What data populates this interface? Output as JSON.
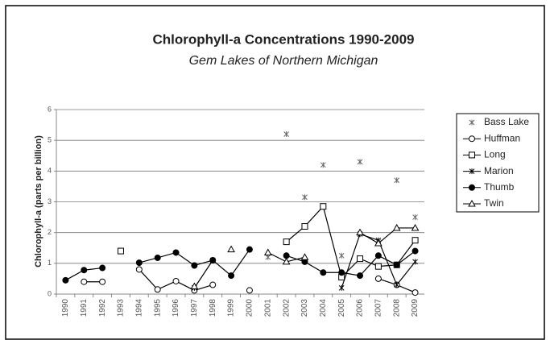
{
  "chart_data": {
    "type": "line",
    "title": "Chlorophyll-a Concentrations 1990-2009",
    "subtitle": "Gem Lakes of Northern Michigan",
    "y_label": "Chlorophyll-a (parts per billion)",
    "categories": [
      "1990",
      "1991",
      "1992",
      "1993",
      "1994",
      "1995",
      "1996",
      "1997",
      "1998",
      "1999",
      "2000",
      "2001",
      "2002",
      "2003",
      "2004",
      "2005",
      "2006",
      "2007",
      "2008",
      "2009"
    ],
    "ylim": [
      0,
      6
    ],
    "yticks": [
      0,
      1,
      2,
      3,
      4,
      5,
      6
    ],
    "grid": true,
    "legend": "right",
    "series": [
      {
        "name": "Bass Lake",
        "color": "#666666",
        "marker": "asterisk",
        "line": false,
        "values": [
          null,
          null,
          null,
          null,
          null,
          null,
          null,
          null,
          null,
          null,
          null,
          1.2,
          5.2,
          3.15,
          4.2,
          1.25,
          4.3,
          1.7,
          3.7,
          2.5
        ]
      },
      {
        "name": "Huffman",
        "color": "#000000",
        "marker": "circle-open",
        "line": true,
        "values": [
          null,
          0.4,
          0.4,
          null,
          0.8,
          0.15,
          0.42,
          0.12,
          0.3,
          null,
          0.12,
          null,
          null,
          null,
          null,
          null,
          null,
          0.5,
          0.3,
          0.05
        ]
      },
      {
        "name": "Long",
        "color": "#000000",
        "marker": "square-open",
        "line": true,
        "values": [
          null,
          null,
          null,
          1.4,
          null,
          null,
          null,
          null,
          null,
          null,
          null,
          null,
          1.7,
          2.2,
          2.85,
          0.55,
          1.15,
          0.9,
          0.95,
          1.75
        ]
      },
      {
        "name": "Marion",
        "color": "#000000",
        "marker": "asterisk",
        "line": true,
        "values": [
          null,
          null,
          null,
          null,
          null,
          null,
          null,
          0.2,
          1.1,
          null,
          null,
          null,
          null,
          null,
          null,
          0.2,
          1.95,
          1.75,
          0.3,
          1.05
        ]
      },
      {
        "name": "Thumb",
        "color": "#000000",
        "marker": "circle-filled",
        "line": true,
        "values": [
          0.45,
          0.78,
          0.85,
          null,
          1.02,
          1.18,
          1.35,
          0.93,
          1.1,
          0.6,
          1.45,
          null,
          1.25,
          1.05,
          0.7,
          0.7,
          0.6,
          1.25,
          0.95,
          1.4
        ]
      },
      {
        "name": "Twin",
        "color": "#000000",
        "marker": "triangle-open",
        "line": true,
        "values": [
          null,
          null,
          null,
          null,
          null,
          null,
          null,
          0.25,
          null,
          1.45,
          null,
          1.35,
          1.05,
          1.2,
          null,
          null,
          2.0,
          1.65,
          2.15,
          2.15
        ]
      }
    ]
  }
}
